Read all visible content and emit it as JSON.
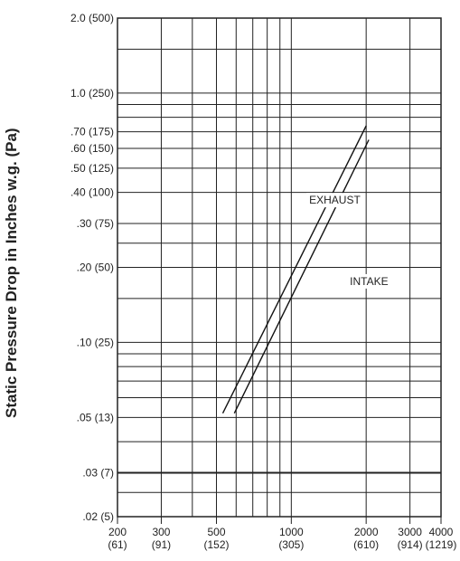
{
  "chart_data": {
    "type": "line",
    "title": "",
    "xlabel": "",
    "ylabel": "Static Pressure Drop in Inches w.g. (Pa)",
    "x_scale": "log",
    "y_scale": "log",
    "xlim": [
      200,
      4000
    ],
    "ylim": [
      0.02,
      2.0
    ],
    "grid": true,
    "x_ticks": [
      {
        "value": 200,
        "label": "200",
        "sublabel": "(61)"
      },
      {
        "value": 300,
        "label": "300",
        "sublabel": "(91)"
      },
      {
        "value": 500,
        "label": "500",
        "sublabel": "(152)"
      },
      {
        "value": 1000,
        "label": "1000",
        "sublabel": "(305)"
      },
      {
        "value": 2000,
        "label": "2000",
        "sublabel": "(610)"
      },
      {
        "value": 3000,
        "label": "3000",
        "sublabel": "(914)"
      },
      {
        "value": 4000,
        "label": "4000",
        "sublabel": "(1219)"
      }
    ],
    "y_ticks": [
      {
        "value": 2.0,
        "label": "2.0 (500)"
      },
      {
        "value": 1.0,
        "label": "1.0 (250)"
      },
      {
        "value": 0.7,
        "label": ".70 (175)"
      },
      {
        "value": 0.6,
        "label": ".60 (150)"
      },
      {
        "value": 0.5,
        "label": ".50 (125)"
      },
      {
        "value": 0.4,
        "label": ".40 (100)"
      },
      {
        "value": 0.3,
        "label": ".30 (75)"
      },
      {
        "value": 0.2,
        "label": ".20 (50)"
      },
      {
        "value": 0.1,
        "label": ".10 (25)"
      },
      {
        "value": 0.05,
        "label": ".05 (13)"
      },
      {
        "value": 0.03,
        "label": ".03 (7)"
      },
      {
        "value": 0.02,
        "label": ".02 (5)"
      }
    ],
    "x_grid": [
      200,
      300,
      400,
      500,
      600,
      700,
      800,
      900,
      1000,
      2000,
      3000,
      4000
    ],
    "y_grid": [
      0.02,
      0.025,
      0.03,
      0.04,
      0.05,
      0.06,
      0.07,
      0.08,
      0.09,
      0.1,
      0.15,
      0.2,
      0.25,
      0.3,
      0.4,
      0.5,
      0.6,
      0.7,
      0.8,
      0.9,
      1.0,
      1.5,
      2.0
    ],
    "series": [
      {
        "name": "EXHAUST",
        "label_at": [
          1180,
          0.36
        ],
        "points": [
          [
            530,
            0.052
          ],
          [
            2000,
            0.74
          ]
        ]
      },
      {
        "name": "INTAKE",
        "label_at": [
          1720,
          0.17
        ],
        "points": [
          [
            590,
            0.052
          ],
          [
            2050,
            0.65
          ]
        ]
      }
    ]
  }
}
